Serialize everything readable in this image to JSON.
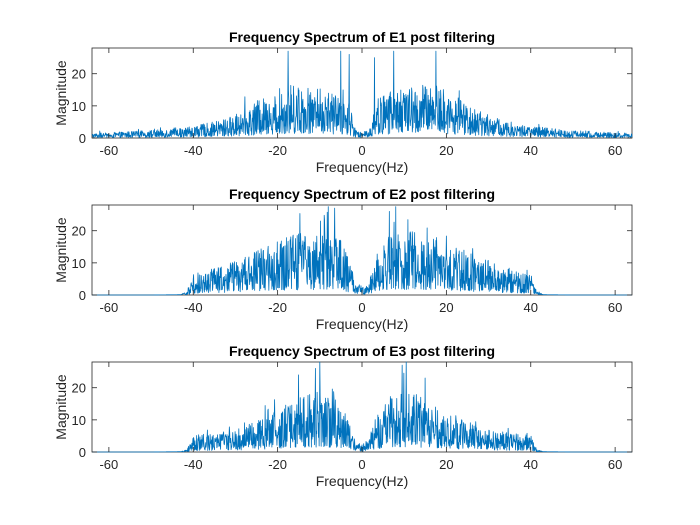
{
  "chart_data": [
    {
      "type": "line",
      "title": "Frequency Spectrum of E1 post filtering",
      "xlabel": "Frequency(Hz)",
      "ylabel": "Magnitude",
      "xlim": [
        -64,
        64
      ],
      "ylim": [
        0,
        28
      ],
      "xticks": [
        -60,
        -40,
        -20,
        0,
        20,
        40,
        60
      ],
      "yticks": [
        0,
        10,
        20
      ],
      "grid": false,
      "color": "#0072BD",
      "profile": {
        "x": [
          -64,
          -60,
          -56,
          -50,
          -46,
          -40,
          -36,
          -32,
          -28,
          -25,
          -22,
          -19,
          -16,
          -13,
          -10,
          -7,
          -5,
          -3,
          -2,
          -1,
          0,
          1,
          2,
          3,
          5,
          7,
          10,
          13,
          16,
          19,
          22,
          25,
          28,
          32,
          36,
          40,
          46,
          50,
          56,
          60,
          64
        ],
        "y": [
          0.8,
          0.9,
          1.1,
          1.3,
          1.6,
          2.0,
          2.6,
          3.4,
          4.6,
          6.0,
          7.4,
          8.6,
          9.2,
          8.8,
          8.4,
          8.0,
          7.4,
          6.6,
          2.0,
          1.2,
          1.0,
          1.2,
          2.0,
          6.6,
          7.4,
          8.0,
          8.4,
          8.8,
          9.2,
          8.6,
          7.4,
          6.0,
          4.6,
          3.4,
          2.6,
          2.0,
          1.6,
          1.3,
          1.1,
          0.9,
          0.8
        ]
      },
      "peaks": [
        [
          -17.5,
          27
        ],
        [
          -5,
          27
        ],
        [
          -3,
          26
        ],
        [
          17.5,
          27
        ],
        [
          7.5,
          27
        ],
        [
          3,
          25
        ]
      ]
    },
    {
      "type": "line",
      "title": "Frequency Spectrum of E2 post filtering",
      "xlabel": "Frequency(Hz)",
      "ylabel": "Magnitude",
      "xlim": [
        -64,
        64
      ],
      "ylim": [
        0,
        28
      ],
      "xticks": [
        -60,
        -40,
        -20,
        0,
        20,
        40,
        60
      ],
      "yticks": [
        0,
        10,
        20
      ],
      "grid": false,
      "color": "#0072BD",
      "profile": {
        "x": [
          -64,
          -50,
          -43,
          -41.5,
          -40,
          -35,
          -30,
          -25,
          -20,
          -15,
          -10,
          -6,
          -3,
          -1.5,
          0,
          1.5,
          3,
          6,
          10,
          15,
          20,
          25,
          30,
          35,
          40,
          41.5,
          43,
          50,
          64
        ],
        "y": [
          0,
          0,
          0.1,
          0.6,
          3.5,
          4.5,
          5.8,
          7.5,
          9.2,
          10.5,
          11.2,
          11.0,
          6.0,
          2.0,
          1.5,
          2.0,
          6.0,
          11.0,
          11.2,
          10.5,
          9.2,
          7.5,
          5.8,
          4.5,
          3.5,
          0.6,
          0.1,
          0,
          0
        ]
      },
      "peaks": [
        [
          -8,
          27.5
        ],
        [
          -6.5,
          27
        ],
        [
          8,
          27.5
        ],
        [
          6.5,
          26
        ]
      ]
    },
    {
      "type": "line",
      "title": "Frequency Spectrum of E3 post filtering",
      "xlabel": "Frequency(Hz)",
      "ylabel": "Magnitude",
      "xlim": [
        -64,
        64
      ],
      "ylim": [
        0,
        28
      ],
      "xticks": [
        -60,
        -40,
        -20,
        0,
        20,
        40,
        60
      ],
      "yticks": [
        0,
        10,
        20
      ],
      "grid": false,
      "color": "#0072BD",
      "profile": {
        "x": [
          -64,
          -50,
          -43,
          -41.5,
          -40,
          -35,
          -30,
          -25,
          -20,
          -15,
          -10,
          -6,
          -3,
          -1.5,
          0,
          1.5,
          3,
          6,
          10,
          15,
          20,
          25,
          30,
          35,
          40,
          41.5,
          43,
          50,
          64
        ],
        "y": [
          0,
          0,
          0.1,
          0.4,
          2.8,
          3.2,
          3.8,
          5.2,
          7.2,
          9.4,
          10.2,
          9.0,
          5.5,
          2.0,
          1.5,
          2.0,
          5.5,
          9.0,
          10.2,
          9.4,
          7.2,
          5.2,
          3.8,
          3.2,
          2.8,
          0.4,
          0.1,
          0,
          0
        ]
      },
      "peaks": [
        [
          -10,
          28
        ],
        [
          -11,
          26
        ],
        [
          10.5,
          28
        ],
        [
          9.5,
          27
        ],
        [
          -15,
          24
        ],
        [
          15,
          23
        ]
      ]
    }
  ]
}
